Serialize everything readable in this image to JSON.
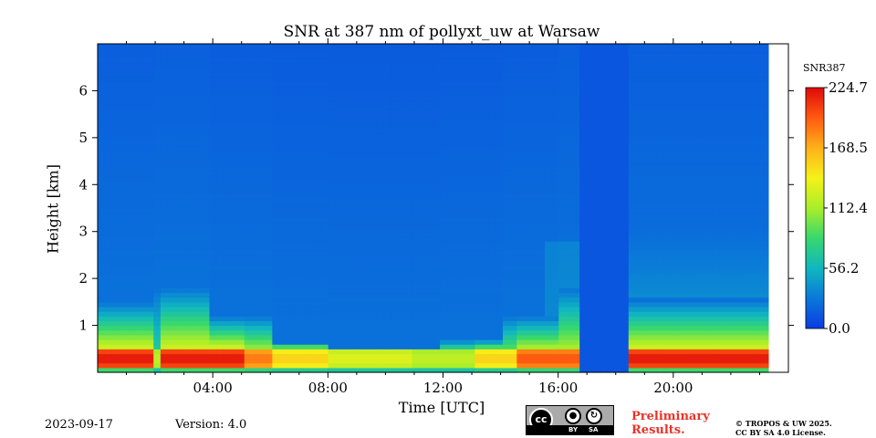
{
  "chart_data": {
    "type": "heatmap",
    "title": "SNR at 387 nm of pollyxt_uw at Warsaw",
    "xlabel": "Time [UTC]",
    "ylabel": "Height [km]",
    "x_range_hours": [
      0,
      24
    ],
    "y_range_km": [
      0,
      7
    ],
    "x_ticks": [
      {
        "hour": 4,
        "label": "04:00"
      },
      {
        "hour": 8,
        "label": "08:00"
      },
      {
        "hour": 12,
        "label": "12:00"
      },
      {
        "hour": 16,
        "label": "16:00"
      },
      {
        "hour": 20,
        "label": "20:00"
      }
    ],
    "y_ticks": [
      {
        "km": 1,
        "label": "1"
      },
      {
        "km": 2,
        "label": "2"
      },
      {
        "km": 3,
        "label": "3"
      },
      {
        "km": 4,
        "label": "4"
      },
      {
        "km": 5,
        "label": "5"
      },
      {
        "km": 6,
        "label": "6"
      }
    ],
    "data_end_hour": 23.3,
    "no_data_intervals_hours": [
      [
        16.75,
        18.4
      ]
    ],
    "colorbar": {
      "label": "SNR387",
      "range": [
        0,
        224.7
      ],
      "ticks": [
        {
          "value": 0.0,
          "label": "0.0"
        },
        {
          "value": 56.2,
          "label": "56.2"
        },
        {
          "value": 112.4,
          "label": "112.4"
        },
        {
          "value": 168.5,
          "label": "168.5"
        },
        {
          "value": 224.7,
          "label": "224.7"
        }
      ],
      "colormap": [
        "#0a3ce2",
        "#0a78d9",
        "#10b7c0",
        "#37d86e",
        "#a9ee2a",
        "#f5f218",
        "#ffb01a",
        "#ff5a10",
        "#e00a0a"
      ]
    },
    "profile_summary_km_snr": {
      "near_ground_max_height_km": 0.5,
      "near_ground_peak_snr": 224.7,
      "background_snr": 20
    }
  },
  "footer": {
    "date": "2023-09-17",
    "version": "Version: 4.0",
    "preliminary_line1": "Preliminary",
    "preliminary_line2": "Results.",
    "copyright_line1": "© TROPOS & UW 2025.",
    "copyright_line2": "CC BY SA 4.0 License.",
    "license_badge": {
      "cc": "cc",
      "by": "BY",
      "sa": "SA"
    }
  }
}
